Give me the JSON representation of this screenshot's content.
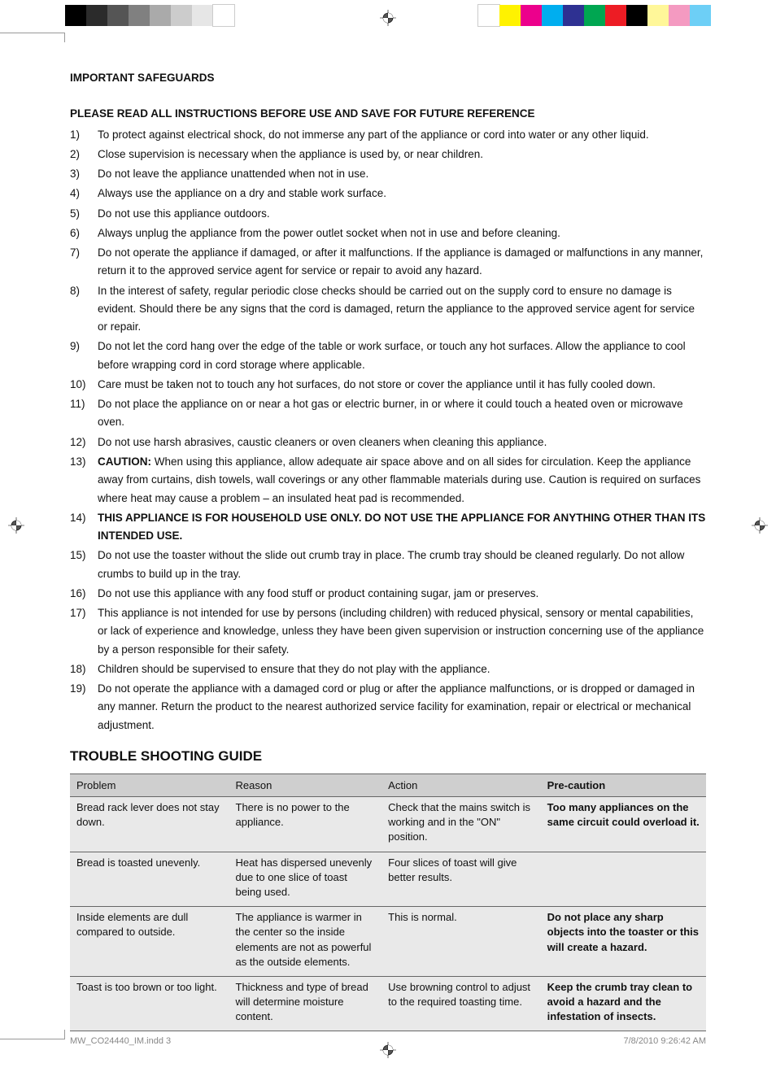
{
  "colorBars": {
    "left": [
      "#000000",
      "#2b2b2b",
      "#555555",
      "#808080",
      "#aaaaaa",
      "#cccccc",
      "#e6e6e6",
      "#ffffff"
    ],
    "right": [
      "#ffffff",
      "#fff200",
      "#ec008c",
      "#00aeef",
      "#2e3192",
      "#00a651",
      "#ed1c24",
      "#000000",
      "#fff799",
      "#f49ac1",
      "#6dcff6"
    ]
  },
  "headings": {
    "safeguards": "IMPORTANT SAFEGUARDS",
    "read": "PLEASE READ ALL INSTRUCTIONS BEFORE USE AND SAVE FOR FUTURE REFERENCE",
    "trouble": "TROUBLE SHOOTING GUIDE"
  },
  "safeguards": [
    "To protect against electrical shock, do not immerse any part of the appliance or cord into water or any other liquid.",
    "Close supervision is necessary when the appliance is used by, or near children.",
    "Do not leave the appliance unattended when not in use.",
    "Always use the appliance on a dry and stable work surface.",
    "Do not use this appliance outdoors.",
    "Always unplug the appliance from the power outlet socket when not in use and before cleaning.",
    "Do not operate the appliance if damaged, or after it malfunctions. If the appliance is damaged or malfunctions in any manner, return it to the approved service agent for service or repair to avoid any hazard.",
    "In the interest of safety, regular periodic close checks should be carried out on the supply cord to ensure no damage is evident. Should there be any signs that the cord is damaged, return the appliance to the approved service agent for service or repair.",
    "Do not let the cord hang over the edge of the table or work surface, or touch any hot surfaces. Allow the appliance to cool before wrapping cord in cord storage where applicable.",
    "Care must be taken not to touch any hot surfaces, do not store or cover the appliance until it has fully cooled down.",
    "Do not place the appliance on or near a hot gas or electric burner, in or where it could touch a heated oven or microwave oven.",
    "Do not use harsh abrasives, caustic cleaners or oven cleaners when cleaning this appliance.",
    "<b>CAUTION:</b> When using this appliance, allow adequate air space above and on all sides for circulation. Keep the appliance away from curtains, dish towels, wall coverings or any other flammable materials during use. Caution is required on surfaces where heat may cause a problem – an insulated heat pad is recommended.",
    "<b>THIS APPLIANCE IS FOR HOUSEHOLD USE ONLY. DO NOT USE THE APPLIANCE FOR ANYTHING OTHER THAN ITS INTENDED USE.</b>",
    "Do not use the toaster without the slide out crumb tray in place. The crumb tray should be cleaned regularly. Do not allow crumbs to build up in the tray.",
    "Do not use this appliance with any food stuff or product containing sugar, jam or preserves.",
    "This appliance is not intended for use by persons (including children) with reduced physical, sensory or mental capabilities, or lack of experience and knowledge, unless they have been given supervision or instruction concerning use of the appliance by a person responsible for their safety.",
    "Children should be supervised to ensure that they do not play with the appliance.",
    "Do not operate the appliance with a damaged cord or plug or after the appliance malfunctions, or is dropped or damaged in any manner. Return the product to the nearest authorized service facility for examination, repair or electrical or mechanical adjustment."
  ],
  "table": {
    "headers": [
      "Problem",
      "Reason",
      "Action",
      "Pre-caution"
    ],
    "colWidths": [
      "25%",
      "24%",
      "25%",
      "26%"
    ],
    "rows": [
      {
        "problem": "Bread rack lever does not stay down.",
        "reason": "There is no power to the appliance.",
        "action": "Check that the mains switch is working and in the \"ON\" position.",
        "precaution": "Too many appliances on the same circuit could overload it."
      },
      {
        "problem": "Bread is toasted unevenly.",
        "reason": "Heat has dispersed unevenly due to one slice of toast being used.",
        "action": "Four slices of toast will give better results.",
        "precaution": ""
      },
      {
        "problem": "Inside elements are dull compared to outside.",
        "reason": "The appliance is warmer in the center so the inside elements are not as powerful as the outside elements.",
        "action": "This is normal.",
        "precaution": "Do not place any sharp objects into the toaster or this will create a hazard."
      },
      {
        "problem": "Toast is too brown or too light.",
        "reason": "Thickness and type of bread will determine moisture content.",
        "action": "Use browning control to adjust to the required toasting time.",
        "precaution": "Keep the crumb tray clean to avoid a hazard and the infestation of insects."
      }
    ]
  },
  "footer": {
    "left": "MW_CO24440_IM.indd   3",
    "right": "7/8/2010   9:26:42 AM"
  }
}
